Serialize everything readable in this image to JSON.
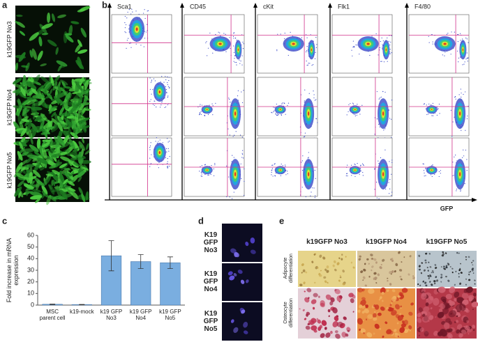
{
  "panel_labels": [
    "a",
    "b",
    "c",
    "d",
    "e"
  ],
  "panel_a": {
    "labels": [
      "k19GFP No3",
      "k19GFP No4",
      "k19GFP No5"
    ]
  },
  "panel_b": {
    "markers": [
      "Sca1",
      "CD45",
      "cKit",
      "Flk1",
      "F4/80"
    ],
    "x_axis_label": "GFP"
  },
  "chart_data": {
    "type": "bar",
    "y_label": "Fold increase in mRNA expression",
    "categories": [
      "MSC parent cell",
      "k19-mock",
      "k19 GFP No3",
      "k19 GFP No4",
      "k19 GFP No5"
    ],
    "values": [
      0.7,
      0.4,
      42.5,
      37.5,
      36.5
    ],
    "errors": [
      0.2,
      0.2,
      13,
      6,
      5
    ],
    "color": "#7aaee0",
    "ylim": [
      0,
      60
    ],
    "yticks": [
      0,
      10,
      20,
      30,
      40,
      50,
      60
    ]
  },
  "panel_d": {
    "labels": [
      "K19 GFP No3",
      "K19 GFP No4",
      "K19 GFP No5"
    ]
  },
  "panel_e": {
    "columns": [
      "k19GFP No3",
      "k19GFP No4",
      "k19GFP No5"
    ],
    "rows": [
      "Adipocyte differentiation",
      "Osteocyte differentiation"
    ]
  }
}
